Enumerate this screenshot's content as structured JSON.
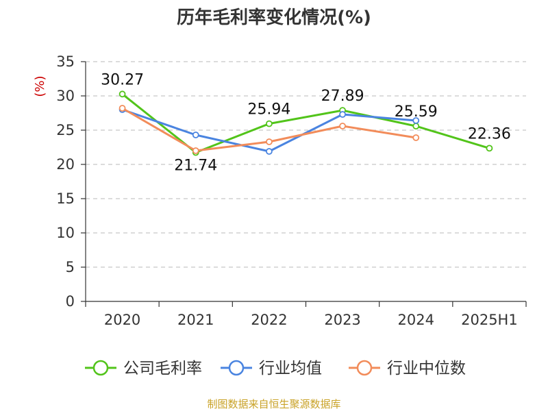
{
  "chart_data": {
    "type": "line",
    "title": "历年毛利率变化情况(%)",
    "ylabel": "(%)",
    "xlabel": "",
    "categories": [
      "2020",
      "2021",
      "2022",
      "2023",
      "2024",
      "2025H1"
    ],
    "ylim": [
      0,
      35
    ],
    "yticks": [
      0,
      5,
      10,
      15,
      20,
      25,
      30,
      35
    ],
    "grid": true,
    "legend_position": "bottom",
    "series": [
      {
        "name": "公司毛利率",
        "color": "#52c41a",
        "values": [
          30.27,
          21.74,
          25.94,
          27.89,
          25.59,
          22.36
        ],
        "labels": [
          "30.27",
          "21.74",
          "25.94",
          "27.89",
          "25.59",
          "22.36"
        ]
      },
      {
        "name": "行业均值",
        "color": "#4a84e0",
        "values": [
          28.0,
          24.3,
          21.9,
          27.3,
          26.4,
          null
        ]
      },
      {
        "name": "行业中位数",
        "color": "#f28c5a",
        "values": [
          28.2,
          22.0,
          23.3,
          25.6,
          23.9,
          null
        ]
      }
    ]
  },
  "footer": {
    "source": "制图数据来自恒生聚源数据库"
  }
}
